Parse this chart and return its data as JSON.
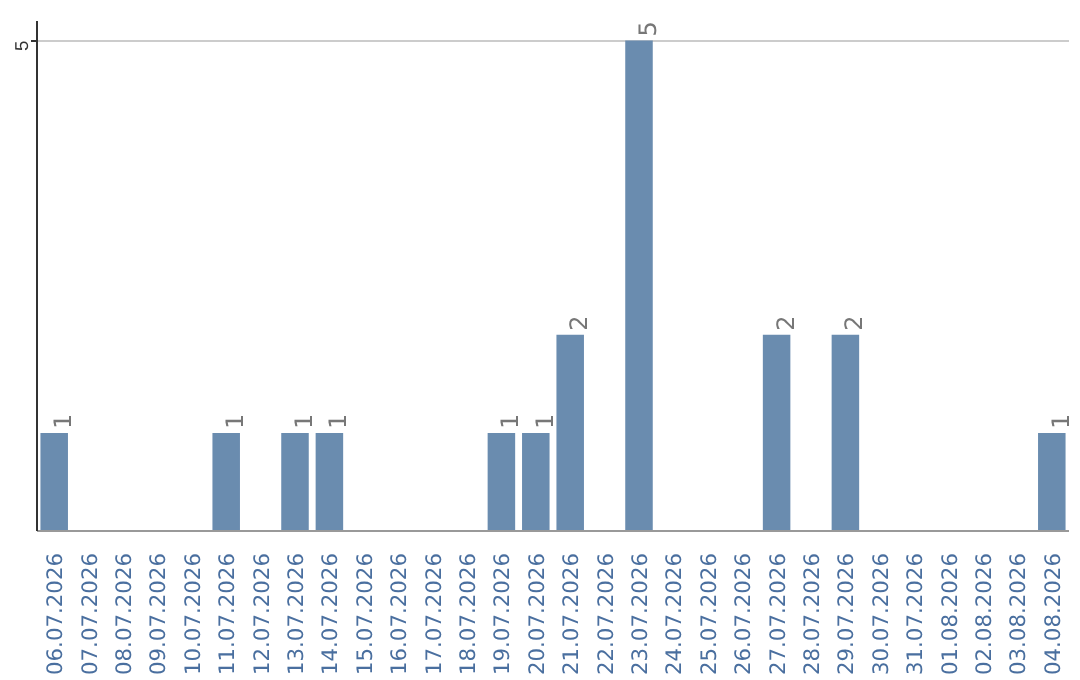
{
  "chart_data": {
    "type": "bar",
    "categories": [
      "06.07.2026",
      "07.07.2026",
      "08.07.2026",
      "09.07.2026",
      "10.07.2026",
      "11.07.2026",
      "12.07.2026",
      "13.07.2026",
      "14.07.2026",
      "15.07.2026",
      "16.07.2026",
      "17.07.2026",
      "18.07.2026",
      "19.07.2026",
      "20.07.2026",
      "21.07.2026",
      "22.07.2026",
      "23.07.2026",
      "24.07.2026",
      "25.07.2026",
      "26.07.2026",
      "27.07.2026",
      "28.07.2026",
      "29.07.2026",
      "30.07.2026",
      "31.07.2026",
      "01.08.2026",
      "02.08.2026",
      "03.08.2026",
      "04.08.2026"
    ],
    "values": [
      1,
      0,
      0,
      0,
      0,
      1,
      0,
      1,
      1,
      0,
      0,
      0,
      0,
      1,
      1,
      2,
      0,
      5,
      0,
      0,
      0,
      2,
      0,
      2,
      0,
      0,
      0,
      0,
      0,
      1
    ],
    "color": "#6a8caf",
    "value_labels": [
      "1",
      null,
      null,
      null,
      null,
      "1",
      null,
      "1",
      "1",
      null,
      null,
      null,
      null,
      "1",
      "1",
      "2",
      null,
      "5",
      null,
      null,
      null,
      "2",
      null,
      "2",
      null,
      null,
      null,
      null,
      null,
      "1"
    ],
    "ylim": [
      0,
      5.2
    ],
    "yticks": [
      5
    ],
    "grid": "y"
  }
}
